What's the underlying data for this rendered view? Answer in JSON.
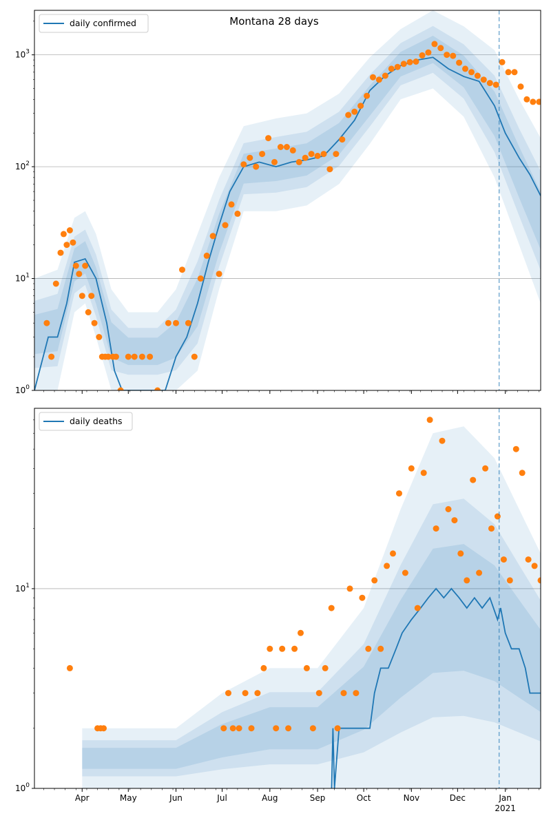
{
  "colors": {
    "line": "#1f77b4",
    "points": "#ff7f0e",
    "band": "#1f77b4",
    "grid": "#b0b0b0",
    "vline": "#1f77b4"
  },
  "chart_data": [
    {
      "type": "line",
      "title": "Montana 28 days",
      "scale_y": "log",
      "ylim": [
        1,
        2500
      ],
      "xlim": [
        "2020-03-01",
        "2021-01-24"
      ],
      "y_ticks": [
        1,
        10,
        100,
        1000
      ],
      "y_tick_labels": [
        "10^0",
        "10^1",
        "10^2",
        "10^3"
      ],
      "x_tick_labels": [
        "Apr",
        "May",
        "Jun",
        "Jul",
        "Aug",
        "Sep",
        "Oct",
        "Nov",
        "Dec",
        "Jan",
        "2021"
      ],
      "x_tick_dates": [
        "2020-04-01",
        "2020-05-01",
        "2020-06-01",
        "2020-07-01",
        "2020-08-01",
        "2020-09-01",
        "2020-10-01",
        "2020-11-01",
        "2020-12-01",
        "2021-01-01"
      ],
      "year_label": "2021",
      "grid": "horizontal",
      "legend_position": "top-left",
      "forecast_start": "2020-12-28",
      "series": [
        {
          "name": "daily confirmed",
          "style": "line",
          "x": [
            "2020-03-01",
            "2020-03-10",
            "2020-03-16",
            "2020-03-22",
            "2020-03-27",
            "2020-04-03",
            "2020-04-10",
            "2020-04-17",
            "2020-04-22",
            "2020-04-27",
            "2020-05-10",
            "2020-05-25",
            "2020-06-01",
            "2020-06-08",
            "2020-06-15",
            "2020-06-22",
            "2020-06-29",
            "2020-07-06",
            "2020-07-15",
            "2020-07-25",
            "2020-08-05",
            "2020-08-15",
            "2020-08-25",
            "2020-09-05",
            "2020-09-15",
            "2020-09-25",
            "2020-10-05",
            "2020-10-15",
            "2020-10-25",
            "2020-11-05",
            "2020-11-15",
            "2020-11-25",
            "2020-12-05",
            "2020-12-15",
            "2020-12-25",
            "2021-01-01",
            "2021-01-10",
            "2021-01-17",
            "2021-01-24"
          ],
          "y": [
            1,
            3,
            3,
            6,
            14,
            15,
            10,
            4,
            1.5,
            1,
            1,
            1,
            2,
            3,
            6,
            14,
            30,
            60,
            100,
            110,
            100,
            110,
            115,
            125,
            175,
            260,
            480,
            650,
            800,
            900,
            950,
            750,
            640,
            580,
            350,
            200,
            120,
            85,
            55
          ]
        },
        {
          "name": "",
          "style": "band",
          "x": [
            "2020-03-01",
            "2020-03-16",
            "2020-03-27",
            "2020-04-03",
            "2020-04-10",
            "2020-04-20",
            "2020-05-01",
            "2020-05-20",
            "2020-06-01",
            "2020-06-15",
            "2020-06-29",
            "2020-07-15",
            "2020-08-05",
            "2020-08-25",
            "2020-09-15",
            "2020-10-05",
            "2020-10-25",
            "2020-11-15",
            "2020-12-05",
            "2020-12-25",
            "2021-01-10",
            "2021-01-24"
          ],
          "low": [
            1,
            1,
            5,
            6,
            3,
            1,
            1,
            1,
            1,
            1.5,
            8,
            40,
            40,
            45,
            70,
            160,
            400,
            500,
            280,
            80,
            20,
            6
          ],
          "high": [
            10,
            12,
            35,
            40,
            25,
            8,
            5,
            5,
            8,
            25,
            80,
            230,
            270,
            300,
            450,
            950,
            1700,
            2500,
            1800,
            1100,
            400,
            180
          ]
        },
        {
          "name": "",
          "style": "points",
          "x": [
            "2020-03-09",
            "2020-03-12",
            "2020-03-15",
            "2020-03-18",
            "2020-03-20",
            "2020-03-22",
            "2020-03-24",
            "2020-03-26",
            "2020-03-28",
            "2020-03-30",
            "2020-04-01",
            "2020-04-03",
            "2020-04-05",
            "2020-04-07",
            "2020-04-09",
            "2020-04-12",
            "2020-04-14",
            "2020-04-16",
            "2020-04-18",
            "2020-04-21",
            "2020-04-23",
            "2020-04-26",
            "2020-05-01",
            "2020-05-05",
            "2020-05-10",
            "2020-05-15",
            "2020-05-20",
            "2020-05-27",
            "2020-06-01",
            "2020-06-05",
            "2020-06-09",
            "2020-06-13",
            "2020-06-17",
            "2020-06-21",
            "2020-06-25",
            "2020-06-29",
            "2020-07-03",
            "2020-07-07",
            "2020-07-11",
            "2020-07-15",
            "2020-07-19",
            "2020-07-23",
            "2020-07-27",
            "2020-07-31",
            "2020-08-04",
            "2020-08-08",
            "2020-08-12",
            "2020-08-16",
            "2020-08-20",
            "2020-08-24",
            "2020-08-28",
            "2020-09-01",
            "2020-09-05",
            "2020-09-09",
            "2020-09-13",
            "2020-09-17",
            "2020-09-21",
            "2020-09-25",
            "2020-09-29",
            "2020-10-03",
            "2020-10-07",
            "2020-10-11",
            "2020-10-15",
            "2020-10-19",
            "2020-10-23",
            "2020-10-27",
            "2020-10-31",
            "2020-11-04",
            "2020-11-08",
            "2020-11-12",
            "2020-11-16",
            "2020-11-20",
            "2020-11-24",
            "2020-11-28",
            "2020-12-02",
            "2020-12-06",
            "2020-12-10",
            "2020-12-14",
            "2020-12-18",
            "2020-12-22",
            "2020-12-26",
            "2020-12-30",
            "2021-01-03",
            "2021-01-07",
            "2021-01-11",
            "2021-01-15",
            "2021-01-19",
            "2021-01-23"
          ],
          "y": [
            4,
            2,
            9,
            17,
            25,
            20,
            27,
            21,
            13,
            11,
            7,
            13,
            5,
            7,
            4,
            3,
            2,
            2,
            2,
            2,
            2,
            1,
            2,
            2,
            2,
            2,
            1,
            4,
            4,
            12,
            4,
            2,
            10,
            16,
            24,
            11,
            30,
            46,
            38,
            105,
            120,
            100,
            130,
            180,
            110,
            150,
            150,
            140,
            110,
            120,
            130,
            125,
            130,
            95,
            130,
            175,
            290,
            310,
            350,
            430,
            630,
            600,
            650,
            750,
            780,
            830,
            860,
            870,
            990,
            1050,
            1250,
            1150,
            1000,
            980,
            850,
            750,
            700,
            650,
            600,
            560,
            540,
            860,
            700,
            700,
            520,
            400,
            380,
            380
          ]
        }
      ]
    },
    {
      "type": "line",
      "title": "",
      "scale_y": "log",
      "ylim": [
        1,
        80
      ],
      "xlim": [
        "2020-03-01",
        "2021-01-24"
      ],
      "y_ticks": [
        1,
        10
      ],
      "y_tick_labels": [
        "10^0",
        "10^1"
      ],
      "x_tick_labels": [
        "Apr",
        "May",
        "Jun",
        "Jul",
        "Aug",
        "Sep",
        "Oct",
        "Nov",
        "Dec",
        "Jan",
        "2021"
      ],
      "x_tick_dates": [
        "2020-04-01",
        "2020-05-01",
        "2020-06-01",
        "2020-07-01",
        "2020-08-01",
        "2020-09-01",
        "2020-10-01",
        "2020-11-01",
        "2020-12-01",
        "2021-01-01"
      ],
      "year_label": "2021",
      "grid": "horizontal",
      "legend_position": "top-left",
      "forecast_start": "2020-12-28",
      "series": [
        {
          "name": "daily deaths",
          "style": "line",
          "x": [
            "2020-09-09",
            "2020-09-09",
            "2020-09-10",
            "2020-09-11",
            "2020-09-12",
            "2020-09-15",
            "2020-09-25",
            "2020-10-05",
            "2020-10-08",
            "2020-10-12",
            "2020-10-17",
            "2020-10-22",
            "2020-10-26",
            "2020-11-01",
            "2020-11-07",
            "2020-11-12",
            "2020-11-17",
            "2020-11-22",
            "2020-11-27",
            "2020-12-02",
            "2020-12-07",
            "2020-12-12",
            "2020-12-17",
            "2020-12-22",
            "2020-12-27",
            "2020-12-29",
            "2021-01-01",
            "2021-01-05",
            "2021-01-10",
            "2021-01-14",
            "2021-01-17",
            "2021-01-20",
            "2021-01-24"
          ],
          "y": [
            1,
            1,
            0.9,
            2,
            1,
            2,
            2,
            2,
            3,
            4,
            4,
            5,
            6,
            7,
            8,
            9,
            10,
            9,
            10,
            9,
            8,
            9,
            8,
            9,
            7,
            8,
            6,
            5,
            5,
            4,
            3,
            3,
            3
          ]
        },
        {
          "name": "",
          "style": "band",
          "x": [
            "2020-04-01",
            "2020-06-01",
            "2020-07-01",
            "2020-08-01",
            "2020-09-01",
            "2020-10-01",
            "2020-10-25",
            "2020-11-15",
            "2020-12-05",
            "2020-12-25",
            "2021-01-10",
            "2021-01-24"
          ],
          "low": [
            1,
            1,
            1,
            1,
            1,
            1,
            1,
            1,
            1,
            1,
            1,
            1
          ],
          "high": [
            2,
            2,
            3,
            4,
            4,
            8,
            25,
            60,
            65,
            45,
            25,
            15
          ]
        },
        {
          "name": "",
          "style": "points",
          "x": [
            "2020-03-24",
            "2020-04-11",
            "2020-04-13",
            "2020-04-15",
            "2020-07-02",
            "2020-07-05",
            "2020-07-08",
            "2020-07-12",
            "2020-07-16",
            "2020-07-20",
            "2020-07-24",
            "2020-07-28",
            "2020-08-01",
            "2020-08-05",
            "2020-08-09",
            "2020-08-13",
            "2020-08-17",
            "2020-08-21",
            "2020-08-25",
            "2020-08-29",
            "2020-09-02",
            "2020-09-06",
            "2020-09-10",
            "2020-09-14",
            "2020-09-18",
            "2020-09-22",
            "2020-09-26",
            "2020-09-30",
            "2020-10-04",
            "2020-10-08",
            "2020-10-12",
            "2020-10-16",
            "2020-10-20",
            "2020-10-24",
            "2020-10-28",
            "2020-11-01",
            "2020-11-05",
            "2020-11-09",
            "2020-11-13",
            "2020-11-17",
            "2020-11-21",
            "2020-11-25",
            "2020-11-29",
            "2020-12-03",
            "2020-12-07",
            "2020-12-11",
            "2020-12-15",
            "2020-12-19",
            "2020-12-23",
            "2020-12-27",
            "2020-12-31",
            "2021-01-04",
            "2021-01-08",
            "2021-01-12",
            "2021-01-16",
            "2021-01-20",
            "2021-01-24"
          ],
          "y": [
            4,
            2,
            2,
            2,
            2,
            3,
            2,
            2,
            3,
            2,
            3,
            4,
            5,
            2,
            5,
            2,
            5,
            6,
            4,
            2,
            3,
            4,
            8,
            2,
            3,
            10,
            3,
            9,
            5,
            11,
            5,
            13,
            15,
            30,
            12,
            40,
            8,
            38,
            70,
            20,
            55,
            25,
            22,
            15,
            11,
            35,
            12,
            40,
            20,
            23,
            14,
            11,
            50,
            38,
            14,
            13,
            11
          ]
        }
      ]
    }
  ]
}
